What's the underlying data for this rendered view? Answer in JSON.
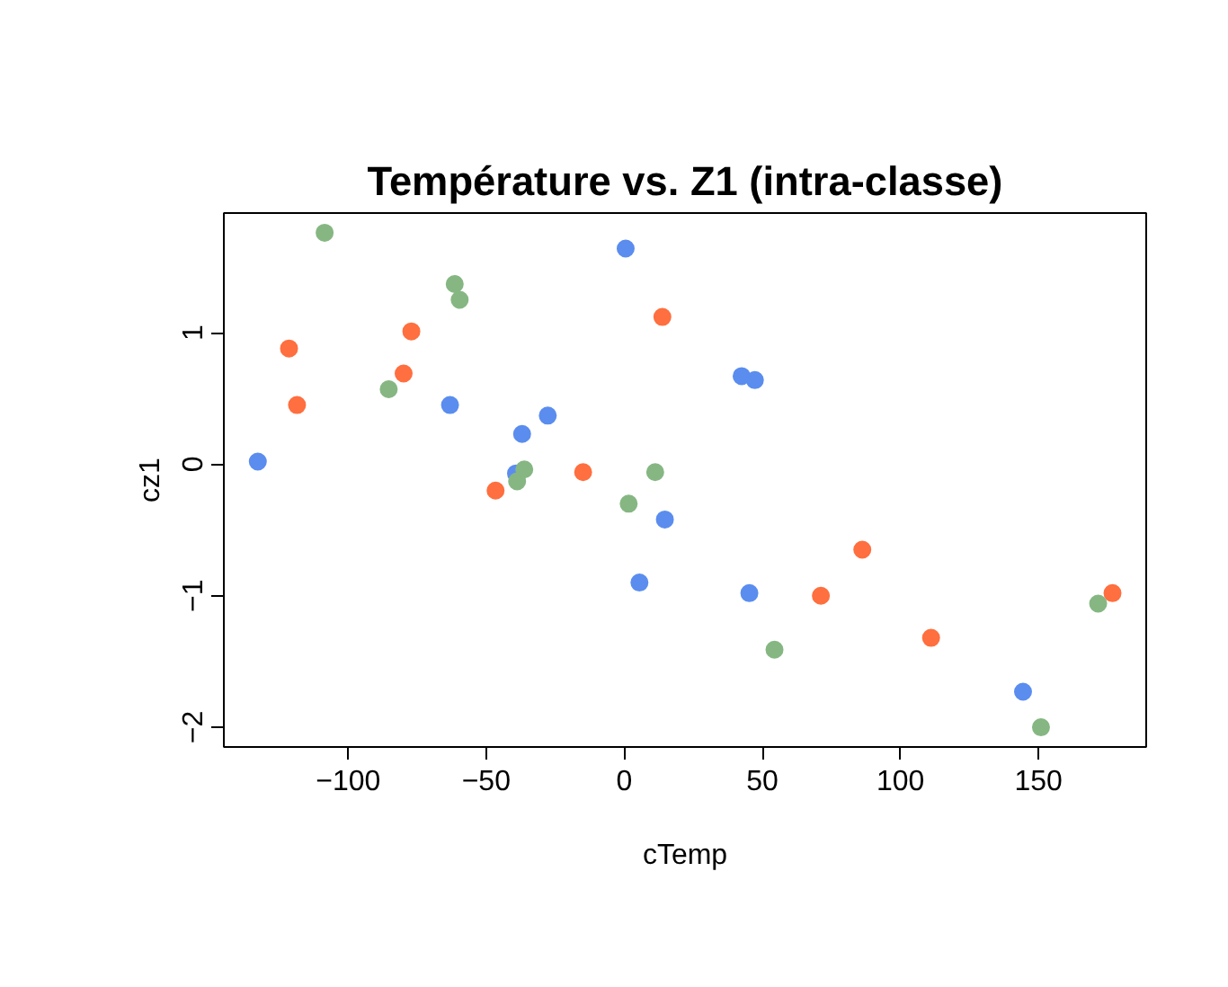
{
  "chart_data": {
    "type": "scatter",
    "title": "Température vs. Z1 (intra-classe)",
    "xlabel": "cTemp",
    "ylabel": "cz1",
    "xlim": [
      -145,
      189
    ],
    "ylim": [
      -2.15,
      1.91
    ],
    "xticks": [
      -100,
      -50,
      0,
      50,
      100,
      150
    ],
    "yticks": [
      -2,
      -1,
      0,
      1
    ],
    "marker": "circle",
    "grid": false,
    "series": [
      {
        "color": "#5b8def",
        "x": [
          -132.7,
          -63.1,
          -37.0,
          -27.7,
          -39.2,
          0.5,
          14.7,
          5.5,
          42.5,
          47.3,
          45.3,
          144.4
        ],
        "values": [
          0.02,
          0.45,
          0.23,
          0.37,
          -0.07,
          1.64,
          -0.42,
          -0.9,
          0.67,
          0.64,
          -0.98,
          -1.73
        ]
      },
      {
        "color": "#ff6f3f",
        "x": [
          -121.4,
          -118.5,
          -77.1,
          -79.9,
          -46.6,
          -14.9,
          13.8,
          71.2,
          86.2,
          111.1,
          176.8
        ],
        "values": [
          0.88,
          0.45,
          1.01,
          0.69,
          -0.2,
          -0.06,
          1.12,
          -1.0,
          -0.65,
          -1.32,
          -0.98
        ]
      },
      {
        "color": "#86b783",
        "x": [
          -108.5,
          -61.4,
          -59.6,
          -85.3,
          -36.2,
          -38.8,
          1.6,
          11.2,
          54.4,
          171.6,
          150.9
        ],
        "values": [
          1.76,
          1.37,
          1.25,
          0.57,
          -0.04,
          -0.13,
          -0.3,
          -0.06,
          -1.41,
          -1.06,
          -2.0
        ]
      }
    ]
  }
}
